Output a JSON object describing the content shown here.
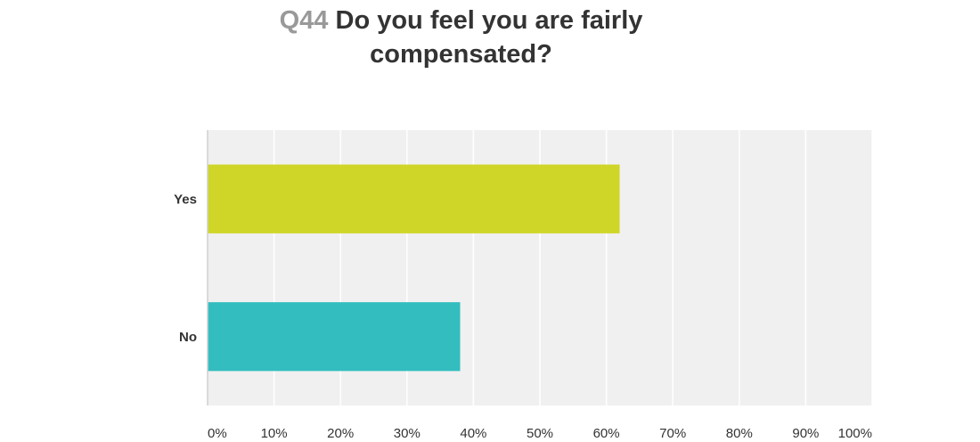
{
  "question": {
    "number": "Q44",
    "text": "Do you feel you are fairly compensated?"
  },
  "chart_data": {
    "type": "bar",
    "orientation": "horizontal",
    "categories": [
      "Yes",
      "No"
    ],
    "values": [
      62,
      38
    ],
    "colors": [
      "#cfd628",
      "#33bdbf"
    ],
    "xlim": [
      0,
      100
    ],
    "xticks": [
      "0%",
      "10%",
      "20%",
      "30%",
      "40%",
      "50%",
      "60%",
      "70%",
      "80%",
      "90%",
      "100%"
    ],
    "grid": true,
    "plot_background": "#f0f0f0",
    "gridline_color": "#ffffff"
  }
}
